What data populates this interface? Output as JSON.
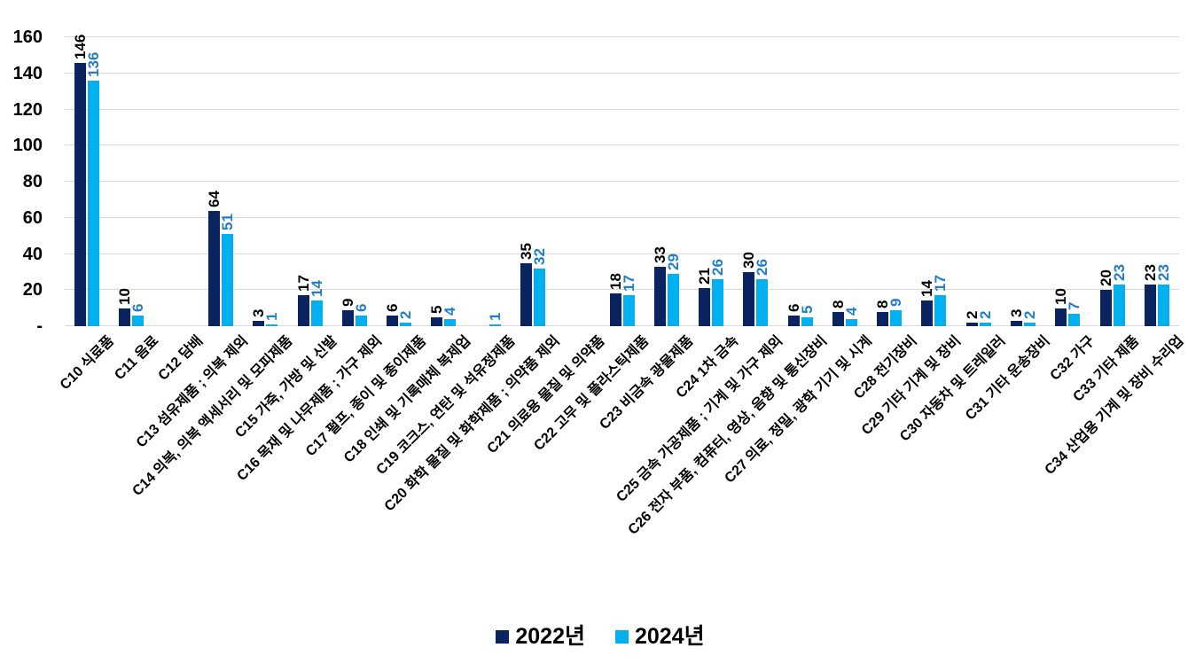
{
  "chart_data": {
    "type": "bar",
    "title": "",
    "xlabel": "",
    "ylabel": "",
    "grid": true,
    "legend_position": "bottom",
    "categories": [
      "C10 식료품",
      "C11 음료",
      "C12 담배",
      "C13 섬유제품 ; 의복 제외",
      "C14 의복, 의복 액세서리 및 모피제품",
      "C15 가죽, 가방 및 신발",
      "C16 목재 및 나무제품 ; 가구 제외",
      "C17 펄프, 종이 및 종이제품",
      "C18 인쇄 및 기록매체 복제업",
      "C19 코크스, 연탄 및 석유정제품",
      "C20 화학 물질 및 화학제품 ; 의약품 제외",
      "C21 의료용 물질 및 의약품",
      "C22 고무 및 플라스틱제품",
      "C23 비금속 광물제품",
      "C24 1차 금속",
      "C25 금속 가공제품 ; 기계 및 가구 제외",
      "C26 전자 부품, 컴퓨터, 영상, 음향 및 통신장비",
      "C27 의료, 정밀, 광학 기기 및 시계",
      "C28 전기장비",
      "C29 기타 기계 및 장비",
      "C30 자동차 및 트레일러",
      "C31 기타 운송장비",
      "C32 가구",
      "C33 기타 제품",
      "C34 산업용 기계 및 장비 수리업"
    ],
    "series": [
      {
        "name": "2022년",
        "color": "#0a2462",
        "label_color": "#000000",
        "values": [
          146,
          10,
          null,
          64,
          3,
          17,
          9,
          6,
          5,
          null,
          35,
          null,
          18,
          33,
          21,
          30,
          6,
          8,
          8,
          14,
          2,
          3,
          10,
          20,
          23
        ]
      },
      {
        "name": "2024년",
        "color": "#00b0f0",
        "label_color": "#1f7dc9",
        "values": [
          136,
          6,
          null,
          51,
          1,
          14,
          6,
          2,
          4,
          1,
          32,
          null,
          17,
          29,
          26,
          26,
          5,
          4,
          9,
          17,
          2,
          2,
          7,
          23,
          23
        ]
      }
    ],
    "y_axis": {
      "min": 0,
      "max": 160,
      "ticks": [
        0,
        20,
        40,
        60,
        80,
        100,
        120,
        140,
        160
      ],
      "tick_labels": [
        "-",
        "20",
        "40",
        "60",
        "80",
        "100",
        "120",
        "140",
        "160"
      ]
    },
    "gridline_color": "#d9d9d9"
  }
}
